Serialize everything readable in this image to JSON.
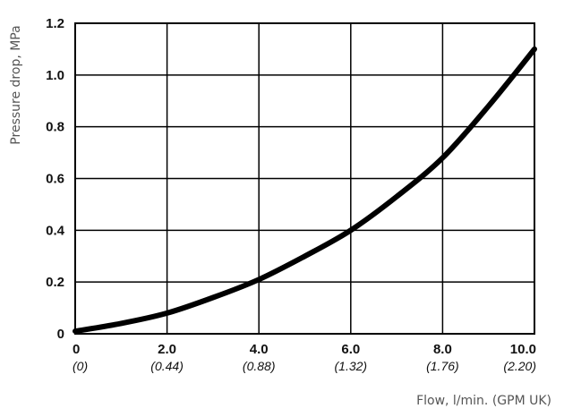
{
  "chart_data": {
    "type": "line",
    "title": "",
    "xlabel": "Flow, l/min. (GPM UK)",
    "ylabel": "Pressure drop, MPa",
    "xlim": [
      0,
      10
    ],
    "ylim": [
      0,
      1.2
    ],
    "grid": true,
    "x_ticks": [
      {
        "value": 0,
        "label": "0",
        "sublabel": "(0)"
      },
      {
        "value": 2,
        "label": "2.0",
        "sublabel": "(0.44)"
      },
      {
        "value": 4,
        "label": "4.0",
        "sublabel": "(0.88)"
      },
      {
        "value": 6,
        "label": "6.0",
        "sublabel": "(1.32)"
      },
      {
        "value": 8,
        "label": "8.0",
        "sublabel": "(1.76)"
      },
      {
        "value": 10,
        "label": "10.0",
        "sublabel": "(2.20)"
      }
    ],
    "y_ticks": [
      {
        "value": 0,
        "label": "0"
      },
      {
        "value": 0.2,
        "label": "0.2"
      },
      {
        "value": 0.4,
        "label": "0.4"
      },
      {
        "value": 0.6,
        "label": "0.6"
      },
      {
        "value": 0.8,
        "label": "0.8"
      },
      {
        "value": 1.0,
        "label": "1.0"
      },
      {
        "value": 1.2,
        "label": "1.2"
      }
    ],
    "series": [
      {
        "color": "#000000",
        "x": [
          0,
          1,
          2,
          3,
          4,
          5,
          6,
          7,
          8,
          9,
          10
        ],
        "y": [
          0.01,
          0.04,
          0.08,
          0.14,
          0.21,
          0.3,
          0.4,
          0.53,
          0.68,
          0.88,
          1.1
        ]
      }
    ]
  }
}
